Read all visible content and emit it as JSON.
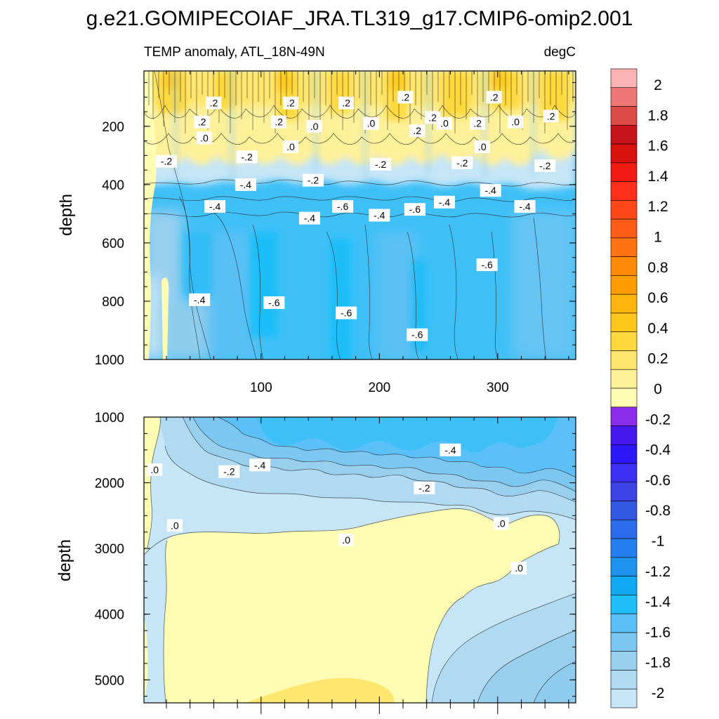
{
  "title": "g.e21.GOMIPECOIAF_JRA.TL319_g17.CMIP6-omip2.001",
  "colors": {
    "zero": "#fffcb4",
    "negative_scale": [
      "#c6e5f7",
      "#b0daf2",
      "#98cfee",
      "#7cc6f2",
      "#5bc0f8",
      "#1fbdf9",
      "#11a9f4",
      "#1e93ee",
      "#247ff0",
      "#2b6cec",
      "#3359e3",
      "#3c44e6",
      "#3a2ff2",
      "#2b16f8",
      "#4617ee",
      "#8b2cea"
    ],
    "positive_scale": [
      "#fffcb4",
      "#fff09a",
      "#ffe66e",
      "#ffd93e",
      "#ffc71c",
      "#ffb40e",
      "#ff9d05",
      "#ff8a0a",
      "#ff7312",
      "#ff5d17",
      "#ff471a",
      "#ff301b",
      "#f11a12",
      "#d8120f",
      "#c4141a",
      "#dd4a46",
      "#ee7676",
      "#fcb3b4"
    ]
  },
  "colorbar_labels": [
    "2",
    "1.8",
    "1.6",
    "1.4",
    "1.2",
    "1",
    "0.8",
    "0.6",
    "0.4",
    "0.2",
    "0",
    "-0.2",
    "-0.4",
    "-0.6",
    "-0.8",
    "-1",
    "-1.2",
    "-1.4",
    "-1.6",
    "-1.8",
    "-2"
  ],
  "chart_data": [
    {
      "type": "heatmap",
      "subtitle_left": "TEMP anomaly, ATL_18N-49N",
      "subtitle_right": "degC",
      "ylabel": "depth",
      "xlim": [
        1,
        366
      ],
      "ylim": [
        1000,
        10
      ],
      "x_ticks": [
        "100",
        "200",
        "300"
      ],
      "y_ticks": [
        "200",
        "400",
        "600",
        "800",
        "1000"
      ],
      "contour_labels": [
        {
          "text": ".2",
          "x": 60,
          "y": 120
        },
        {
          "text": ".2",
          "x": 125,
          "y": 120
        },
        {
          "text": ".2",
          "x": 172,
          "y": 120
        },
        {
          "text": ".2",
          "x": 222,
          "y": 100
        },
        {
          "text": ".2",
          "x": 297,
          "y": 100
        },
        {
          "text": ".2",
          "x": 50,
          "y": 185
        },
        {
          "text": ".2",
          "x": 115,
          "y": 185
        },
        {
          "text": ".0",
          "x": 145,
          "y": 200
        },
        {
          "text": ".0",
          "x": 193,
          "y": 190
        },
        {
          "text": ".2",
          "x": 245,
          "y": 170
        },
        {
          "text": ".0",
          "x": 255,
          "y": 190
        },
        {
          "text": ".2",
          "x": 283,
          "y": 190
        },
        {
          "text": ".0",
          "x": 315,
          "y": 185
        },
        {
          "text": ".2",
          "x": 345,
          "y": 165
        },
        {
          "text": ".0",
          "x": 52,
          "y": 240
        },
        {
          "text": ".0",
          "x": 125,
          "y": 270
        },
        {
          "text": ".2",
          "x": 232,
          "y": 215
        },
        {
          "text": ".0",
          "x": 287,
          "y": 270
        },
        {
          "text": "-.2",
          "x": 20,
          "y": 320
        },
        {
          "text": "-.2",
          "x": 88,
          "y": 305
        },
        {
          "text": "-.2",
          "x": 201,
          "y": 330
        },
        {
          "text": "-.2",
          "x": 270,
          "y": 325
        },
        {
          "text": "-.2",
          "x": 340,
          "y": 335
        },
        {
          "text": "-.4",
          "x": 87,
          "y": 400
        },
        {
          "text": "-.2",
          "x": 144,
          "y": 385
        },
        {
          "text": "-.4",
          "x": 294,
          "y": 420
        },
        {
          "text": "-.4",
          "x": 61,
          "y": 475
        },
        {
          "text": "-.4",
          "x": 141,
          "y": 515
        },
        {
          "text": "-.6",
          "x": 169,
          "y": 475
        },
        {
          "text": "-.4",
          "x": 200,
          "y": 505
        },
        {
          "text": "-.6",
          "x": 230,
          "y": 485
        },
        {
          "text": "-.4",
          "x": 255,
          "y": 460
        },
        {
          "text": "-.4",
          "x": 323,
          "y": 475
        },
        {
          "text": "-.6",
          "x": 291,
          "y": 675
        },
        {
          "text": "-.4",
          "x": 48,
          "y": 795
        },
        {
          "text": "-.6",
          "x": 111,
          "y": 805
        },
        {
          "text": "-.6",
          "x": 172,
          "y": 840
        },
        {
          "text": "-.6",
          "x": 232,
          "y": 915
        }
      ]
    },
    {
      "type": "heatmap",
      "ylabel": "depth",
      "xlim": [
        1,
        366
      ],
      "ylim": [
        5350,
        1000
      ],
      "y_ticks": [
        "1000",
        "2000",
        "3000",
        "4000",
        "5000"
      ],
      "contour_labels": [
        {
          "text": ".0",
          "x": 10,
          "y": 1800
        },
        {
          "text": "-.4",
          "x": 99,
          "y": 1730
        },
        {
          "text": "-.2",
          "x": 73,
          "y": 1830
        },
        {
          "text": "-.4",
          "x": 260,
          "y": 1500
        },
        {
          "text": "-.2",
          "x": 238,
          "y": 2080
        },
        {
          "text": ".0",
          "x": 27,
          "y": 2650
        },
        {
          "text": ".0",
          "x": 172,
          "y": 2870
        },
        {
          "text": ".0",
          "x": 303,
          "y": 2620
        },
        {
          "text": ".0",
          "x": 318,
          "y": 3300
        }
      ]
    }
  ]
}
